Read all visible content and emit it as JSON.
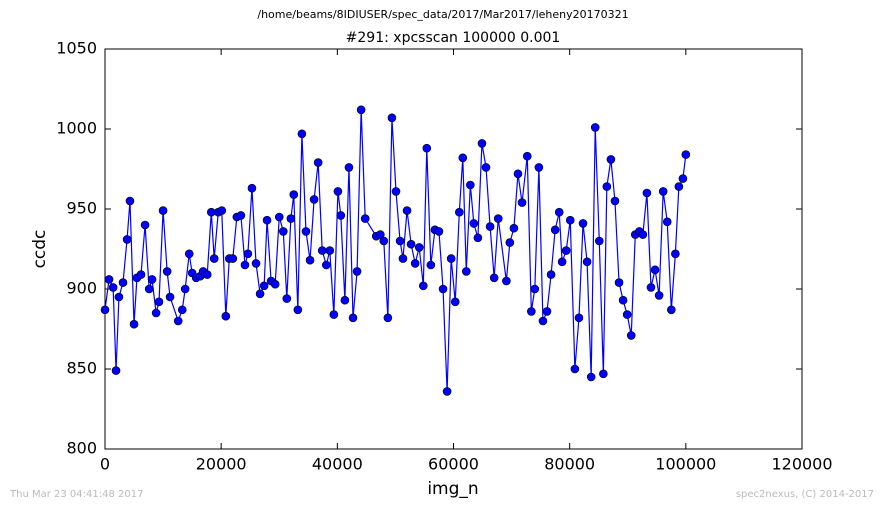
{
  "chart_data": {
    "type": "line",
    "suptitle": "/home/beams/8IDIUSER/spec_data/2017/Mar2017/leheny20170321",
    "title": "#291: xpcsscan 100000 0.001",
    "xlabel": "img_n",
    "ylabel": "ccdc",
    "footer_left": "Thu Mar 23 04:41:48 2017",
    "footer_right": "spec2nexus, (C) 2014-2017",
    "xlim": [
      0,
      120000
    ],
    "xticks": [
      0,
      20000,
      40000,
      60000,
      80000,
      100000,
      120000
    ],
    "ylim": [
      800,
      1050
    ],
    "yticks": [
      800,
      850,
      900,
      950,
      1000,
      1050
    ],
    "grid": false,
    "x": [
      0,
      700,
      1400,
      1900,
      2400,
      3100,
      3800,
      4300,
      5000,
      5500,
      6200,
      6900,
      7600,
      8100,
      8800,
      9300,
      10000,
      10700,
      11200,
      12600,
      13300,
      13800,
      14500,
      15000,
      15700,
      16400,
      16900,
      17600,
      18300,
      18800,
      19500,
      20100,
      20800,
      21400,
      22000,
      22700,
      23400,
      24100,
      24600,
      25300,
      26000,
      26700,
      27400,
      27900,
      28600,
      29300,
      30000,
      30700,
      31300,
      32000,
      32500,
      33200,
      33900,
      34600,
      35300,
      36000,
      36700,
      37400,
      38100,
      38700,
      39400,
      40100,
      40600,
      41300,
      42000,
      42700,
      43400,
      44100,
      44800,
      46700,
      47400,
      48000,
      48700,
      49400,
      50100,
      50800,
      51300,
      52000,
      52700,
      53400,
      54100,
      54800,
      55400,
      56100,
      56800,
      57500,
      58200,
      58900,
      59600,
      60300,
      61000,
      61600,
      62200,
      62900,
      63500,
      64200,
      64900,
      65600,
      66300,
      67000,
      67700,
      69100,
      69700,
      70400,
      71100,
      71800,
      72700,
      73400,
      74000,
      74700,
      75400,
      76100,
      76800,
      77500,
      78200,
      78700,
      79400,
      80100,
      80900,
      81600,
      82300,
      83000,
      83700,
      84400,
      85100,
      85800,
      86400,
      87100,
      87800,
      88500,
      89200,
      89900,
      90600,
      91300,
      92000,
      92600,
      93300,
      94000,
      94700,
      95400,
      96100,
      96800,
      97500,
      98200,
      98800,
      99500,
      100000
    ],
    "series": [
      {
        "name": "ccdc",
        "color": "#0000ff",
        "values": [
          887,
          906,
          901,
          849,
          895,
          904,
          931,
          955,
          878,
          907,
          909,
          940,
          900,
          906,
          885,
          892,
          949,
          911,
          895,
          880,
          887,
          900,
          922,
          910,
          907,
          908,
          911,
          909,
          948,
          919,
          948,
          949,
          883,
          919,
          919,
          945,
          946,
          915,
          922,
          963,
          916,
          897,
          902,
          943,
          905,
          903,
          945,
          936,
          894,
          944,
          959,
          887,
          997,
          936,
          918,
          956,
          979,
          924,
          915,
          924,
          884,
          961,
          946,
          893,
          976,
          882,
          911,
          1012,
          944,
          933,
          934,
          930,
          882,
          1007,
          961,
          930,
          919,
          949,
          928,
          916,
          926,
          902,
          988,
          915,
          937,
          936,
          900,
          836,
          919,
          892,
          948,
          982,
          911,
          965,
          941,
          932,
          991,
          976,
          939,
          907,
          944,
          905,
          929,
          938,
          972,
          954,
          983,
          886,
          900,
          976,
          880,
          886,
          909,
          937,
          948,
          917,
          924,
          943,
          850,
          882,
          941,
          917,
          845,
          1001,
          930,
          847,
          964,
          981,
          955,
          904,
          893,
          884,
          871,
          934,
          936,
          934,
          960,
          901,
          912,
          896,
          961,
          942,
          887,
          922,
          964,
          969,
          984
        ]
      }
    ]
  }
}
